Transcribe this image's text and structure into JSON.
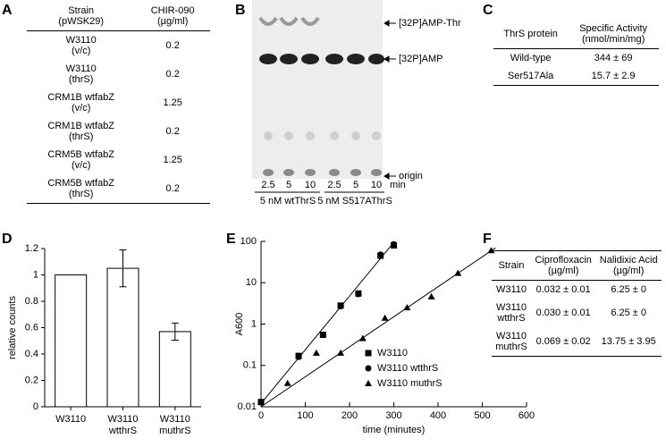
{
  "panel_labels": [
    "A",
    "B",
    "C",
    "D",
    "E",
    "F"
  ],
  "table_a": {
    "header": [
      [
        "Strain",
        "(pWSK29)"
      ],
      [
        "CHIR-090",
        "(µg/ml)"
      ]
    ],
    "rows": [
      [
        [
          "W3110",
          "(v/c)"
        ],
        [
          "0.2"
        ]
      ],
      [
        [
          "W3110",
          "(thrS)"
        ],
        [
          "0.2"
        ]
      ],
      [
        [
          "CRM1B wtfabZ",
          "(v/c)"
        ],
        [
          "1.25"
        ]
      ],
      [
        [
          "CRM1B wtfabZ",
          "(thrS)"
        ],
        [
          "0.2"
        ]
      ],
      [
        [
          "CRM5B wtfabZ",
          "(v/c)"
        ],
        [
          "1.25"
        ]
      ],
      [
        [
          "CRM5B wtfabZ",
          "(thrS)"
        ],
        [
          "0.2"
        ]
      ]
    ]
  },
  "gel_b": {
    "bands": [
      "[32P]AMP-Thr",
      "[32P]AMP",
      "origin"
    ],
    "lanes": [
      "2.5",
      "5",
      "10",
      "2.5",
      "5",
      "10"
    ],
    "unit": "min",
    "groups": [
      "5 nM wtThrS",
      "5 nM S517AThrS"
    ]
  },
  "table_c": {
    "header": [
      [
        "ThrS protein"
      ],
      [
        "Specific Activity",
        "(nmol/min/mg)"
      ]
    ],
    "rows": [
      [
        [
          "Wild-type"
        ],
        [
          "344 ± 69"
        ]
      ],
      [
        [
          "Ser517Ala"
        ],
        [
          "15.7 ± 2.9"
        ]
      ]
    ]
  },
  "chart_data": [
    {
      "type": "bar",
      "ylabel": "relative counts",
      "categories": [
        "W3110",
        "W3110 wtthrS",
        "W3110 muthrS"
      ],
      "values": [
        1,
        1.05,
        0.57
      ],
      "errors": [
        null,
        0.14,
        0.065
      ],
      "color": "#ffffff",
      "ylim": [
        0,
        1.2
      ],
      "yticks": [
        0,
        0.2,
        0.4,
        0.6,
        0.8,
        1,
        1.2
      ]
    },
    {
      "type": "scatter",
      "xlabel": "time (minutes)",
      "ylabel": "A600",
      "log_y": true,
      "legend": "lower right",
      "xlim": [
        0,
        600
      ],
      "xticks": [
        0,
        100,
        200,
        300,
        400,
        500,
        600
      ],
      "ylim": [
        0.01,
        100
      ],
      "yticks": [
        0.01,
        0.1,
        1,
        10,
        100
      ],
      "series": [
        {
          "name": "W3110",
          "color": "#000000",
          "marker": "square",
          "x": [
            0,
            85,
            140,
            180,
            220,
            270,
            300
          ],
          "values": [
            0.013,
            0.17,
            0.55,
            2.8,
            5.5,
            45,
            80
          ]
        },
        {
          "name": "W3110 wtthrS",
          "color": "#000000",
          "marker": "circle",
          "x": [
            0,
            85,
            180,
            220,
            270,
            300
          ],
          "values": [
            0.013,
            0.16,
            2.7,
            5.3,
            48,
            85
          ]
        },
        {
          "name": "W3110 muthrS",
          "color": "#000000",
          "marker": "triangle",
          "x": [
            60,
            125,
            180,
            230,
            280,
            330,
            385,
            445,
            520
          ],
          "values": [
            0.037,
            0.2,
            0.2,
            0.45,
            1.4,
            2.5,
            4.6,
            17,
            60
          ]
        }
      ],
      "trend_lines": [
        {
          "x": [
            0,
            300
          ],
          "values": [
            0.012,
            95
          ]
        },
        {
          "x": [
            0,
            530
          ],
          "values": [
            0.01,
            70
          ]
        }
      ]
    }
  ],
  "table_f": {
    "header": [
      [
        "Strain"
      ],
      [
        "Ciprofloxacin",
        "(µg/ml)"
      ],
      [
        "Nalidixic Acid",
        "(µg/ml)"
      ]
    ],
    "rows": [
      [
        [
          "W3110"
        ],
        [
          "0.032 ± 0.01"
        ],
        [
          "6.25 ± 0"
        ]
      ],
      [
        [
          "W3110",
          "wtthrS"
        ],
        [
          "0.030 ± 0.01"
        ],
        [
          "6.25 ± 0"
        ]
      ],
      [
        [
          "W3110",
          "muthrS"
        ],
        [
          "0.069 ± 0.02"
        ],
        [
          "13.75 ± 3.95"
        ]
      ]
    ]
  }
}
